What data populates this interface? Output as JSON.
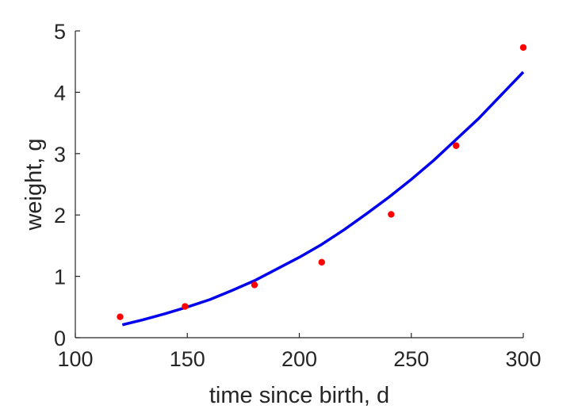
{
  "chart_data": {
    "type": "scatter",
    "title": "",
    "xlabel": "time since birth, d",
    "ylabel": "weight, g",
    "xlim": [
      100,
      300
    ],
    "ylim": [
      0,
      5
    ],
    "xticks": [
      100,
      150,
      200,
      250,
      300
    ],
    "yticks": [
      0,
      1,
      2,
      3,
      4,
      5
    ],
    "grid": false,
    "series": [
      {
        "kind": "scatter",
        "color": "#ff0000",
        "x": [
          120,
          149,
          180,
          210,
          241,
          270,
          300
        ],
        "y": [
          0.34,
          0.51,
          0.86,
          1.23,
          2.01,
          3.13,
          4.73
        ]
      },
      {
        "kind": "line",
        "color": "#0000ee",
        "x": [
          121,
          130,
          140,
          150,
          160,
          170,
          180,
          190,
          200,
          210,
          220,
          230,
          240,
          250,
          260,
          270,
          280,
          290,
          300
        ],
        "y": [
          0.21,
          0.29,
          0.39,
          0.5,
          0.62,
          0.77,
          0.93,
          1.12,
          1.31,
          1.52,
          1.76,
          2.02,
          2.29,
          2.58,
          2.89,
          3.23,
          3.57,
          3.95,
          4.33
        ]
      }
    ]
  }
}
